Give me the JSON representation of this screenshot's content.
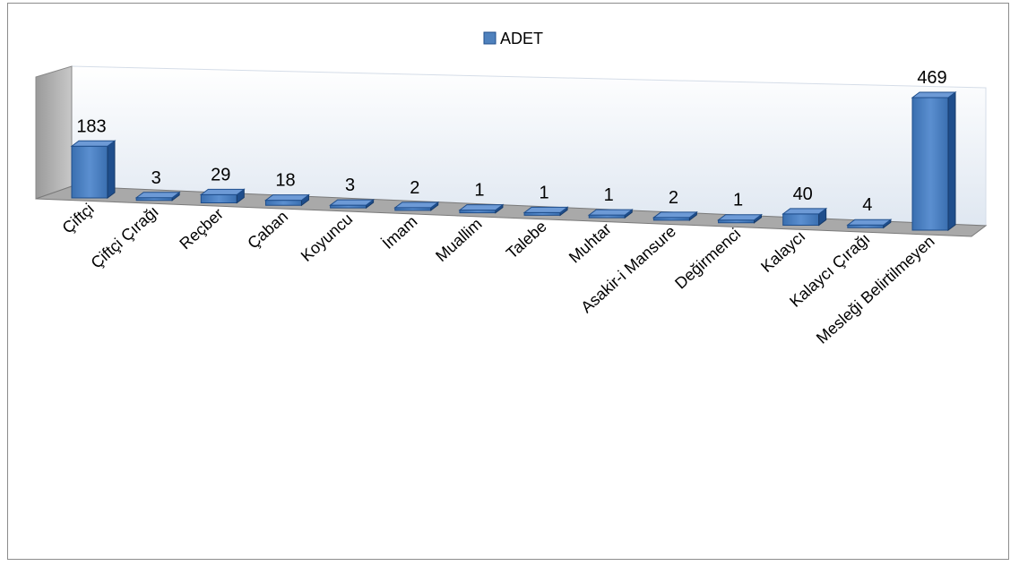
{
  "chart_data": {
    "type": "bar",
    "title": "",
    "xlabel": "",
    "ylabel": "",
    "categories": [
      "Çiftçi",
      "Çiftçi Çırağı",
      "Reçber",
      "Çaban",
      "Koyuncu",
      "İmam",
      "Muallim",
      "Talebe",
      "Muhtar",
      "Asakir-i Mansure",
      "Değirmenci",
      "Kalaycı",
      "Kalaycı Çırağı",
      "Mesleği Belirtilmeyen"
    ],
    "series": [
      {
        "name": "ADET",
        "values": [
          183,
          3,
          29,
          18,
          3,
          2,
          1,
          1,
          1,
          2,
          1,
          40,
          4,
          469
        ]
      }
    ],
    "ylim": [
      0,
      469
    ],
    "legend": "top-center",
    "grid": false,
    "colors": {
      "bar": "#4f81bd",
      "bar_side": "#1f4e8c",
      "bar_top": "#6d9ad6",
      "wall": "#e8f0f8",
      "floor": "#b0b0b0"
    }
  }
}
